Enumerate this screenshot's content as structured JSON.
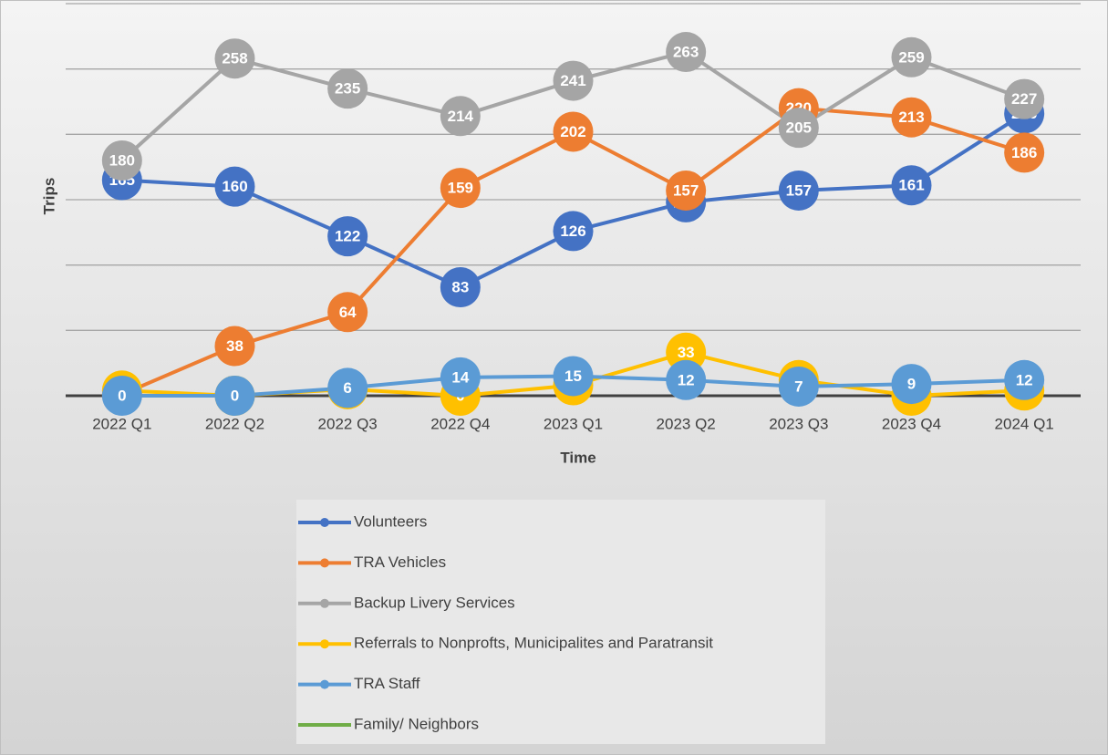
{
  "chart_data": {
    "type": "line",
    "categories": [
      "2022 Q1",
      "2022 Q2",
      "2022 Q3",
      "2022 Q4",
      "2023 Q1",
      "2023 Q2",
      "2023 Q3",
      "2023 Q4",
      "2024 Q1"
    ],
    "series": [
      {
        "name": "Volunteers",
        "color": "#4472c4",
        "values": [
          165,
          160,
          122,
          83,
          126,
          148,
          157,
          161,
          216
        ]
      },
      {
        "name": "TRA Vehicles",
        "color": "#ed7d31",
        "values": [
          1,
          38,
          64,
          159,
          202,
          157,
          220,
          213,
          186
        ]
      },
      {
        "name": "Backup Livery Services",
        "color": "#a5a5a5",
        "values": [
          180,
          258,
          235,
          214,
          241,
          263,
          205,
          259,
          227
        ]
      },
      {
        "name": "Referrals to Nonprofts, Municipalites and Paratransit",
        "color": "#ffc000",
        "values": [
          4,
          0,
          5,
          0,
          8,
          33,
          12,
          0,
          4
        ]
      },
      {
        "name": "TRA Staff",
        "color": "#5b9bd5",
        "values": [
          0,
          0,
          6,
          14,
          15,
          12,
          7,
          9,
          12
        ]
      },
      {
        "name": "Family/ Neighbors",
        "color": "#70ad47",
        "values": [
          null,
          null,
          null,
          null,
          null,
          null,
          null,
          null,
          null
        ]
      }
    ],
    "x_label": "Time",
    "y_label": "Trips",
    "ylim": [
      0,
      300
    ],
    "yticks": [
      0,
      50,
      100,
      150,
      200,
      250,
      300
    ],
    "grid": true
  }
}
